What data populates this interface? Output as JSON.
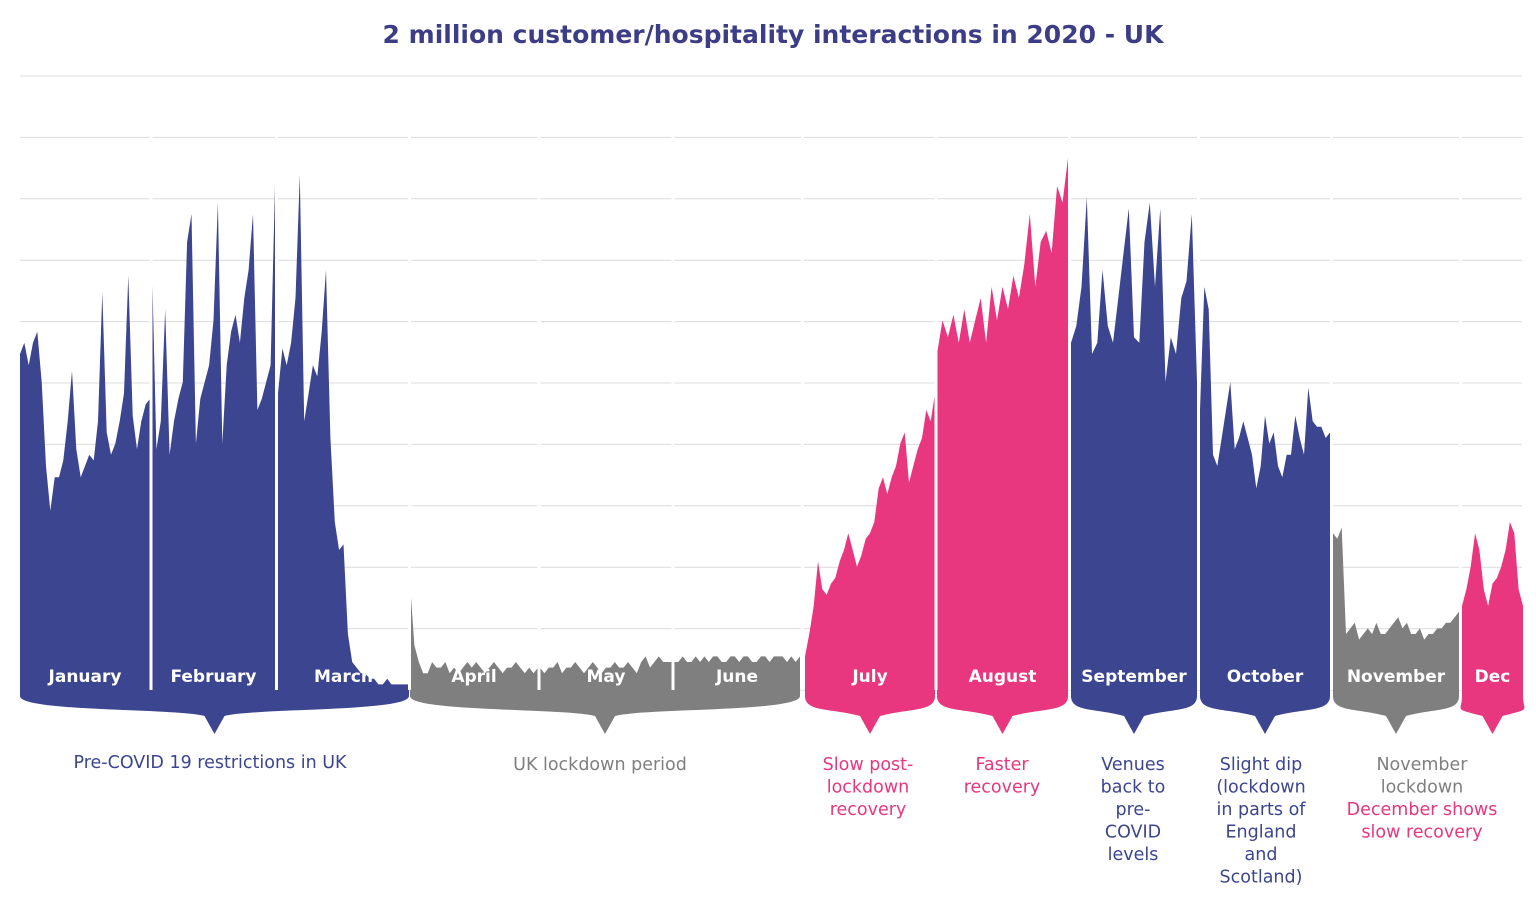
{
  "colors": {
    "blue": "#3c4590",
    "grey": "#7f7f7f",
    "pink": "#e8367f",
    "white": "#ffffff",
    "grid": "#dcdcdc"
  },
  "chart_data": {
    "type": "area",
    "title": "2 million customer/hospitality interactions in 2020 - UK",
    "xlabel": "",
    "ylabel": "",
    "grid": true,
    "y_gridlines": 10,
    "months": [
      {
        "label": "January",
        "color": "blue",
        "values": [
          60,
          62,
          58,
          62,
          64,
          55,
          40,
          32,
          38,
          38,
          41,
          48,
          57,
          43,
          38,
          40,
          42,
          41,
          48,
          71,
          46,
          42,
          44,
          48,
          53,
          74,
          49,
          43,
          48,
          51,
          52
        ]
      },
      {
        "label": "February",
        "color": "blue",
        "values": [
          76,
          43,
          48,
          68,
          42,
          48,
          52,
          55,
          80,
          85,
          44,
          52,
          55,
          58,
          66,
          87,
          44,
          58,
          64,
          67,
          62,
          70,
          75,
          85,
          50,
          52,
          55,
          58,
          90
        ]
      },
      {
        "label": "March",
        "color": "blue",
        "values": [
          53,
          61,
          58,
          62,
          70,
          92,
          48,
          53,
          58,
          56,
          64,
          75,
          45,
          30,
          25,
          26,
          10,
          5,
          4,
          3,
          3,
          2,
          2,
          1,
          1,
          2,
          1,
          1,
          1,
          1,
          1
        ]
      },
      {
        "label": "April",
        "color": "grey",
        "values": [
          19,
          8,
          5,
          3,
          3,
          5,
          4,
          4,
          5,
          3,
          4,
          3,
          4,
          5,
          4,
          5,
          4,
          3,
          4,
          5,
          4,
          3,
          4,
          4,
          5,
          4,
          3,
          4,
          3,
          4
        ]
      },
      {
        "label": "May",
        "color": "grey",
        "values": [
          4,
          3,
          4,
          4,
          5,
          3,
          4,
          4,
          5,
          4,
          3,
          4,
          5,
          4,
          3,
          4,
          4,
          5,
          4,
          4,
          5,
          4,
          3,
          5,
          6,
          4,
          5,
          6,
          5,
          5,
          5
        ]
      },
      {
        "label": "June",
        "color": "grey",
        "values": [
          5,
          5,
          6,
          5,
          5,
          6,
          5,
          6,
          5,
          6,
          6,
          5,
          5,
          6,
          6,
          5,
          6,
          6,
          5,
          5,
          6,
          6,
          5,
          6,
          6,
          6,
          5,
          6,
          5,
          6
        ]
      },
      {
        "label": "July",
        "color": "pink",
        "values": [
          6,
          10,
          15,
          23,
          18,
          17,
          19,
          20,
          23,
          25,
          28,
          25,
          22,
          24,
          27,
          28,
          30,
          36,
          38,
          35,
          38,
          40,
          44,
          46,
          37,
          40,
          43,
          45,
          50,
          48,
          53
        ]
      },
      {
        "label": "August",
        "color": "pink",
        "values": [
          60,
          66,
          63,
          67,
          62,
          68,
          62,
          66,
          70,
          62,
          72,
          66,
          72,
          68,
          74,
          70,
          76,
          85,
          72,
          80,
          82,
          78,
          90,
          87,
          95
        ]
      },
      {
        "label": "September",
        "color": "blue",
        "values": [
          62,
          65,
          72,
          88,
          60,
          62,
          75,
          65,
          62,
          70,
          78,
          86,
          63,
          62,
          80,
          87,
          72,
          86,
          55,
          63,
          60,
          70,
          73,
          85,
          55
        ]
      },
      {
        "label": "October",
        "color": "blue",
        "values": [
          50,
          72,
          68,
          42,
          40,
          45,
          50,
          55,
          43,
          45,
          48,
          45,
          42,
          36,
          40,
          49,
          44,
          46,
          40,
          38,
          42,
          42,
          49,
          45,
          42,
          54,
          48,
          47,
          47,
          45,
          46
        ]
      },
      {
        "label": "November",
        "color": "grey",
        "values": [
          28,
          27,
          29,
          10,
          11,
          12,
          9,
          10,
          11,
          10,
          12,
          10,
          10,
          11,
          12,
          13,
          11,
          12,
          10,
          10,
          11,
          9,
          10,
          10,
          11,
          11,
          12,
          12,
          13,
          14
        ]
      },
      {
        "label": "Dec",
        "color": "pink",
        "values": [
          15,
          18,
          22,
          28,
          25,
          18,
          15,
          19,
          20,
          22,
          25,
          30,
          28,
          18,
          15
        ]
      }
    ]
  },
  "periods": [
    {
      "color": "blue",
      "lines": [
        {
          "text": "Pre-COVID 19 restrictions in UK",
          "color": "blue"
        }
      ]
    },
    {
      "color": "grey",
      "lines": [
        {
          "text": "UK lockdown period",
          "color": "grey"
        }
      ]
    },
    {
      "color": "pink",
      "lines": [
        {
          "text": "Slow post-",
          "color": "pink"
        },
        {
          "text": "lockdown",
          "color": "pink"
        },
        {
          "text": "recovery",
          "color": "pink"
        }
      ]
    },
    {
      "color": "pink",
      "lines": [
        {
          "text": "Faster",
          "color": "pink"
        },
        {
          "text": "recovery",
          "color": "pink"
        }
      ]
    },
    {
      "color": "blue",
      "lines": [
        {
          "text": "Venues",
          "color": "blue"
        },
        {
          "text": "back to",
          "color": "blue"
        },
        {
          "text": "pre-",
          "color": "blue"
        },
        {
          "text": "COVID",
          "color": "blue"
        },
        {
          "text": "levels",
          "color": "blue"
        }
      ]
    },
    {
      "color": "blue",
      "lines": [
        {
          "text": "Slight dip",
          "color": "blue"
        },
        {
          "text": "(lockdown",
          "color": "blue"
        },
        {
          "text": "in parts of",
          "color": "blue"
        },
        {
          "text": "England",
          "color": "blue"
        },
        {
          "text": "and",
          "color": "blue"
        },
        {
          "text": "Scotland)",
          "color": "blue"
        }
      ]
    },
    {
      "color": "grey",
      "lines": [
        {
          "text": "November",
          "color": "grey"
        },
        {
          "text": "lockdown",
          "color": "grey"
        }
      ]
    },
    {
      "color": "pink",
      "lines": [
        {
          "text": "December shows",
          "color": "pink"
        },
        {
          "text": "slow recovery",
          "color": "pink"
        }
      ]
    }
  ]
}
